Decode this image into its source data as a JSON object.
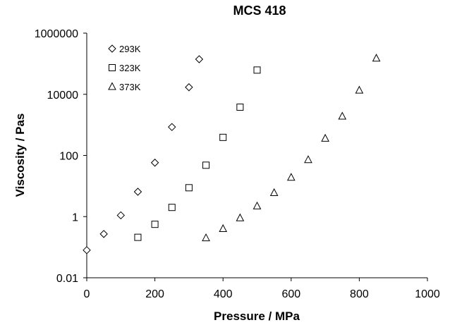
{
  "chart_data": {
    "type": "scatter",
    "title": "MCS 418",
    "xlabel": "Pressure / MPa",
    "ylabel": "Viscosity / Pas",
    "xlim": [
      0,
      1000
    ],
    "ylim": [
      0.01,
      1000000
    ],
    "yscale": "log",
    "grid": false,
    "legend_position": "top-left",
    "x_ticks": [
      "0",
      "200",
      "400",
      "600",
      "800",
      "1000"
    ],
    "y_ticks": [
      "0.01",
      "1",
      "100",
      "10000",
      "1000000"
    ],
    "series": [
      {
        "name": "293K",
        "marker": "diamond",
        "x": [
          0,
          50,
          100,
          150,
          200,
          250,
          300,
          330
        ],
        "y": [
          0.08,
          0.27,
          1.1,
          6.5,
          58,
          850,
          17000,
          140000
        ]
      },
      {
        "name": "323K",
        "marker": "square",
        "x": [
          150,
          200,
          250,
          300,
          350,
          400,
          450,
          500
        ],
        "y": [
          0.21,
          0.56,
          2.0,
          8.8,
          48,
          390,
          3800,
          62000
        ]
      },
      {
        "name": "373K",
        "marker": "triangle",
        "x": [
          350,
          400,
          450,
          500,
          550,
          600,
          650,
          700,
          750,
          800,
          850
        ],
        "y": [
          0.2,
          0.4,
          0.9,
          2.2,
          6.0,
          19,
          72,
          360,
          1900,
          13500,
          150000
        ]
      }
    ]
  }
}
